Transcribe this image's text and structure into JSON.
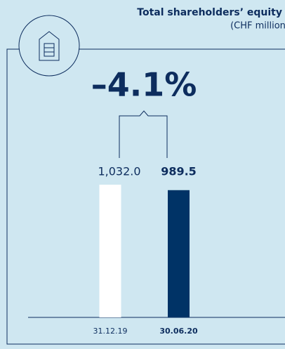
{
  "chart_data": {
    "type": "bar",
    "title": "Total shareholders’ equity",
    "subtitle": "(CHF million)",
    "annotation": "–4.1%",
    "categories": [
      "31.12.19",
      "30.06.20"
    ],
    "values": [
      1032.0,
      989.5
    ],
    "value_labels": [
      "1,032.0",
      "989.5"
    ],
    "colors": [
      "#ffffff",
      "#003366"
    ]
  }
}
